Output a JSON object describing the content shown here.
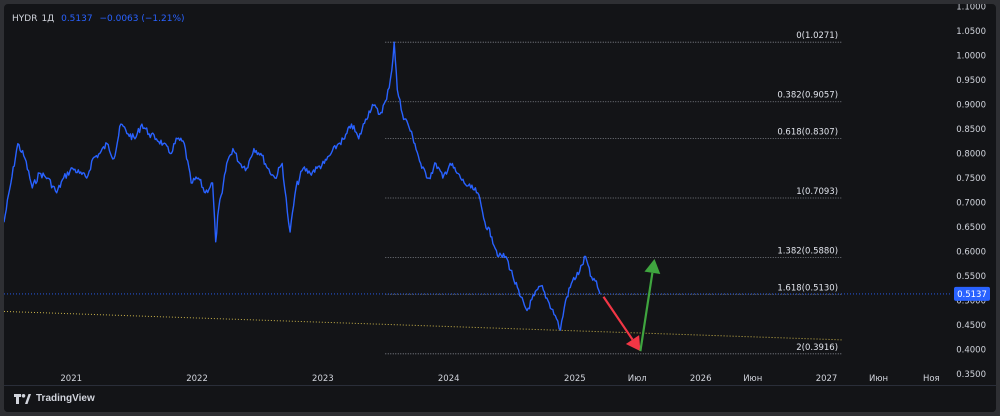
{
  "legend": {
    "symbol": "HYDR",
    "interval": "1Д",
    "last": "0.5137",
    "change": "−0.0063 (−1.21%)"
  },
  "footer": {
    "brand": "TradingView"
  },
  "colors": {
    "background": "#131417",
    "price_line": "#2962ff",
    "fib_line": "#9598a1",
    "trend_line": "#c9b34a",
    "arrow_down": "#f23645",
    "arrow_up": "#3fa53f",
    "axis_text": "#d1d4dc",
    "last_price_badge": "#2962ff"
  },
  "chart_data": {
    "type": "line",
    "title": "HYDR, 1Д",
    "y_axis": {
      "side": "right",
      "range": [
        0.33,
        1.105
      ],
      "ticks": [
        "1.1000",
        "1.0500",
        "1.0000",
        "0.9500",
        "0.9000",
        "0.8500",
        "0.8000",
        "0.7500",
        "0.7000",
        "0.6500",
        "0.6000",
        "0.5500",
        "0.5000",
        "0.4500",
        "0.4000",
        "0.3500"
      ]
    },
    "x_axis": {
      "range": [
        "2020-06-20",
        "2027-12-31"
      ],
      "ticks": [
        {
          "label": "2021",
          "date": "2021-01-01"
        },
        {
          "label": "2022",
          "date": "2022-01-01"
        },
        {
          "label": "2023",
          "date": "2023-01-01"
        },
        {
          "label": "2024",
          "date": "2024-01-01"
        },
        {
          "label": "2025",
          "date": "2025-01-01"
        },
        {
          "label": "Июл",
          "date": "2025-07-01"
        },
        {
          "label": "2026",
          "date": "2026-01-01"
        },
        {
          "label": "Июн",
          "date": "2026-06-01"
        },
        {
          "label": "2027",
          "date": "2027-01-01"
        },
        {
          "label": "Июн",
          "date": "2027-06-01"
        },
        {
          "label": "Ноя",
          "date": "2027-11-01"
        }
      ]
    },
    "last_price": {
      "value": 0.5137,
      "label": "0.5137"
    },
    "series": [
      {
        "points": [
          [
            "2020-06-20",
            0.66
          ],
          [
            "2020-07-10",
            0.74
          ],
          [
            "2020-07-30",
            0.82
          ],
          [
            "2020-08-20",
            0.79
          ],
          [
            "2020-09-10",
            0.73
          ],
          [
            "2020-10-01",
            0.76
          ],
          [
            "2020-10-25",
            0.75
          ],
          [
            "2020-11-20",
            0.72
          ],
          [
            "2020-12-10",
            0.75
          ],
          [
            "2021-01-05",
            0.77
          ],
          [
            "2021-01-25",
            0.76
          ],
          [
            "2021-02-15",
            0.75
          ],
          [
            "2021-03-05",
            0.79
          ],
          [
            "2021-03-25",
            0.8
          ],
          [
            "2021-04-15",
            0.82
          ],
          [
            "2021-05-05",
            0.79
          ],
          [
            "2021-05-25",
            0.86
          ],
          [
            "2021-06-15",
            0.84
          ],
          [
            "2021-07-05",
            0.83
          ],
          [
            "2021-07-25",
            0.86
          ],
          [
            "2021-08-15",
            0.84
          ],
          [
            "2021-09-05",
            0.83
          ],
          [
            "2021-09-25",
            0.82
          ],
          [
            "2021-10-15",
            0.8
          ],
          [
            "2021-11-05",
            0.83
          ],
          [
            "2021-11-25",
            0.82
          ],
          [
            "2021-12-15",
            0.74
          ],
          [
            "2022-01-05",
            0.75
          ],
          [
            "2022-01-25",
            0.72
          ],
          [
            "2022-02-15",
            0.74
          ],
          [
            "2022-02-24",
            0.62
          ],
          [
            "2022-03-05",
            0.69
          ],
          [
            "2022-03-15",
            0.72
          ],
          [
            "2022-03-28",
            0.78
          ],
          [
            "2022-04-15",
            0.81
          ],
          [
            "2022-05-05",
            0.78
          ],
          [
            "2022-05-25",
            0.77
          ],
          [
            "2022-06-15",
            0.81
          ],
          [
            "2022-07-05",
            0.8
          ],
          [
            "2022-07-25",
            0.77
          ],
          [
            "2022-08-15",
            0.75
          ],
          [
            "2022-09-05",
            0.78
          ],
          [
            "2022-09-20",
            0.68
          ],
          [
            "2022-09-28",
            0.64
          ],
          [
            "2022-10-15",
            0.73
          ],
          [
            "2022-11-05",
            0.77
          ],
          [
            "2022-11-25",
            0.76
          ],
          [
            "2022-12-15",
            0.77
          ],
          [
            "2023-01-05",
            0.78
          ],
          [
            "2023-01-25",
            0.8
          ],
          [
            "2023-02-15",
            0.82
          ],
          [
            "2023-03-05",
            0.83
          ],
          [
            "2023-03-25",
            0.86
          ],
          [
            "2023-04-15",
            0.83
          ],
          [
            "2023-05-05",
            0.87
          ],
          [
            "2023-05-25",
            0.9
          ],
          [
            "2023-06-15",
            0.88
          ],
          [
            "2023-07-05",
            0.91
          ],
          [
            "2023-07-20",
            0.97
          ],
          [
            "2023-07-27",
            1.027
          ],
          [
            "2023-08-05",
            0.93
          ],
          [
            "2023-08-20",
            0.88
          ],
          [
            "2023-09-05",
            0.86
          ],
          [
            "2023-09-25",
            0.82
          ],
          [
            "2023-10-15",
            0.77
          ],
          [
            "2023-11-05",
            0.75
          ],
          [
            "2023-11-25",
            0.78
          ],
          [
            "2023-12-15",
            0.75
          ],
          [
            "2024-01-05",
            0.78
          ],
          [
            "2024-01-25",
            0.76
          ],
          [
            "2024-02-15",
            0.74
          ],
          [
            "2024-03-05",
            0.73
          ],
          [
            "2024-03-25",
            0.72
          ],
          [
            "2024-04-15",
            0.66
          ],
          [
            "2024-05-05",
            0.63
          ],
          [
            "2024-05-25",
            0.59
          ],
          [
            "2024-06-15",
            0.59
          ],
          [
            "2024-07-05",
            0.55
          ],
          [
            "2024-07-25",
            0.51
          ],
          [
            "2024-08-15",
            0.48
          ],
          [
            "2024-09-05",
            0.51
          ],
          [
            "2024-09-25",
            0.53
          ],
          [
            "2024-10-15",
            0.5
          ],
          [
            "2024-11-05",
            0.47
          ],
          [
            "2024-11-20",
            0.44
          ],
          [
            "2024-12-05",
            0.5
          ],
          [
            "2024-12-25",
            0.54
          ],
          [
            "2025-01-15",
            0.56
          ],
          [
            "2025-02-01",
            0.59
          ],
          [
            "2025-02-15",
            0.55
          ],
          [
            "2025-03-01",
            0.54
          ],
          [
            "2025-03-15",
            0.5137
          ]
        ]
      }
    ],
    "fib_levels": [
      {
        "label": "0(1.0271)",
        "value": 1.0271
      },
      {
        "label": "0.382(0.9057)",
        "value": 0.9057
      },
      {
        "label": "0.618(0.8307)",
        "value": 0.8307
      },
      {
        "label": "1(0.7093)",
        "value": 0.7093
      },
      {
        "label": "1.382(0.5880)",
        "value": 0.588
      },
      {
        "label": "1.618(0.5130)",
        "value": 0.513
      },
      {
        "label": "2(0.3916)",
        "value": 0.3916
      }
    ],
    "fib_range": [
      "2023-07-01",
      "2027-02-15"
    ],
    "trendline": [
      [
        "2020-06-20",
        0.478
      ],
      [
        "2027-02-15",
        0.42
      ]
    ],
    "arrows": [
      {
        "direction": "down",
        "from": [
          "2025-03-25",
          0.508
        ],
        "to": [
          "2025-07-10",
          0.397
        ]
      },
      {
        "direction": "up",
        "from": [
          "2025-07-10",
          0.397
        ],
        "to": [
          "2025-08-20",
          0.585
        ]
      }
    ]
  }
}
